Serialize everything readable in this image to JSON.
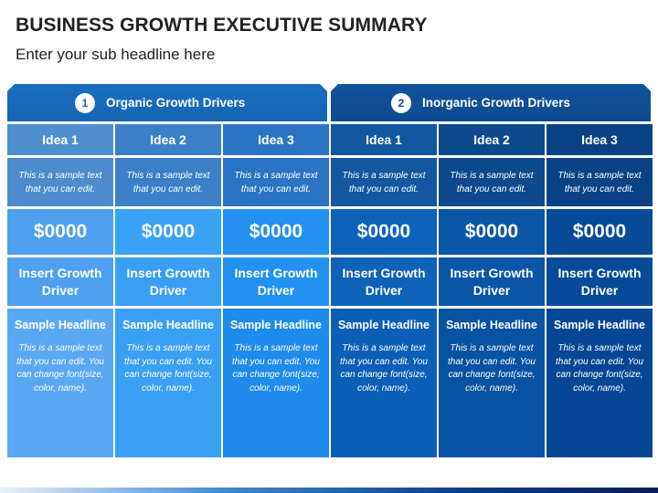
{
  "header": {
    "title": "BUSINESS GROWTH EXECUTIVE SUMMARY",
    "subtitle": "Enter your sub headline here"
  },
  "groups": [
    {
      "number": "1",
      "label": "Organic Growth Drivers"
    },
    {
      "number": "2",
      "label": "Inorganic Growth Drivers"
    }
  ],
  "columns": [
    {
      "idea": "Idea 1",
      "sample": "This is a sample text that you can edit.",
      "amount": "$0000",
      "driver": "Insert Growth Driver",
      "headline": "Sample Headline",
      "body": "This is a sample text that you can edit. You can change font(size, color, name)."
    },
    {
      "idea": "Idea 2",
      "sample": "This is a sample text that you can edit.",
      "amount": "$0000",
      "driver": "Insert Growth Driver",
      "headline": "Sample Headline",
      "body": "This is a sample text that you can edit. You can change font(size, color, name)."
    },
    {
      "idea": "Idea 3",
      "sample": "This is a sample text that you can edit.",
      "amount": "$0000",
      "driver": "Insert Growth Driver",
      "headline": "Sample Headline",
      "body": "This is a sample text that you can edit. You can change font(size, color, name)."
    },
    {
      "idea": "Idea 1",
      "sample": "This is a sample text that you can edit.",
      "amount": "$0000",
      "driver": "Insert Growth Driver",
      "headline": "Sample Headline",
      "body": "This is a sample text that you can edit. You can change font(size, color, name)."
    },
    {
      "idea": "Idea 2",
      "sample": "This is a sample text that you can edit.",
      "amount": "$0000",
      "driver": "Insert Growth Driver",
      "headline": "Sample Headline",
      "body": "This is a sample text that you can edit. You can change font(size, color, name)."
    },
    {
      "idea": "Idea 3",
      "sample": "This is a sample text that you can edit.",
      "amount": "$0000",
      "driver": "Insert Growth Driver",
      "headline": "Sample Headline",
      "body": "This is a sample text that you can edit. You can change font(size, color, name)."
    }
  ],
  "colors": {
    "organic_header": "#1565b3",
    "inorganic_header": "#0e4a8e",
    "title_text": "#222222"
  }
}
